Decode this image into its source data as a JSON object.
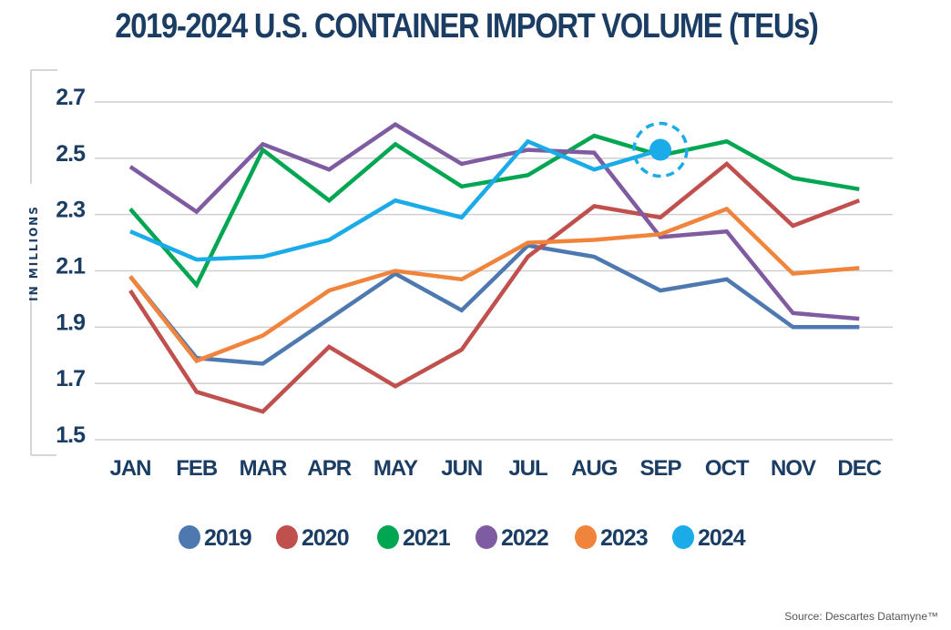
{
  "chart_data": {
    "type": "line",
    "title": "2019-2024 U.S. CONTAINER IMPORT VOLUME (TEUs)",
    "xlabel": "",
    "ylabel": "IN MILLIONS",
    "ylim": [
      1.5,
      2.7
    ],
    "yticks": [
      "2.7",
      "2.5",
      "2.3",
      "2.1",
      "1.9",
      "1.7",
      "1.5"
    ],
    "ytick_values": [
      2.7,
      2.5,
      2.3,
      2.1,
      1.9,
      1.7,
      1.5
    ],
    "grid": true,
    "legend_position": "bottom",
    "categories": [
      "JAN",
      "FEB",
      "MAR",
      "APR",
      "MAY",
      "JUN",
      "JUL",
      "AUG",
      "SEP",
      "OCT",
      "NOV",
      "DEC"
    ],
    "series": [
      {
        "name": "2019",
        "color": "#4e79b0",
        "values": [
          2.08,
          1.79,
          1.77,
          1.93,
          2.09,
          1.96,
          2.19,
          2.15,
          2.03,
          2.07,
          1.9,
          1.9
        ]
      },
      {
        "name": "2020",
        "color": "#c0504d",
        "values": [
          2.03,
          1.67,
          1.6,
          1.83,
          1.69,
          1.82,
          2.15,
          2.33,
          2.29,
          2.48,
          2.26,
          2.35
        ]
      },
      {
        "name": "2021",
        "color": "#00a651",
        "values": [
          2.32,
          2.05,
          2.53,
          2.35,
          2.55,
          2.4,
          2.44,
          2.58,
          2.51,
          2.56,
          2.43,
          2.39
        ]
      },
      {
        "name": "2022",
        "color": "#7f5ca1",
        "values": [
          2.47,
          2.31,
          2.55,
          2.46,
          2.62,
          2.48,
          2.53,
          2.52,
          2.22,
          2.24,
          1.95,
          1.93
        ]
      },
      {
        "name": "2023",
        "color": "#f0843c",
        "values": [
          2.08,
          1.78,
          1.87,
          2.03,
          2.1,
          2.07,
          2.2,
          2.21,
          2.23,
          2.32,
          2.09,
          2.11
        ]
      },
      {
        "name": "2024",
        "color": "#1aabe8",
        "values": [
          2.24,
          2.14,
          2.15,
          2.21,
          2.35,
          2.29,
          2.56,
          2.46,
          2.53,
          null,
          null,
          null
        ]
      }
    ],
    "highlight": {
      "series": "2024",
      "category": "SEP",
      "value": 2.53,
      "style": "dashed-circle"
    },
    "source": "Source: Descartes Datamyne™"
  },
  "colors": {
    "title": "#1b3d63",
    "grid": "#cfcfcf",
    "axis_text": "#1b3d63",
    "source_text": "#555555"
  }
}
